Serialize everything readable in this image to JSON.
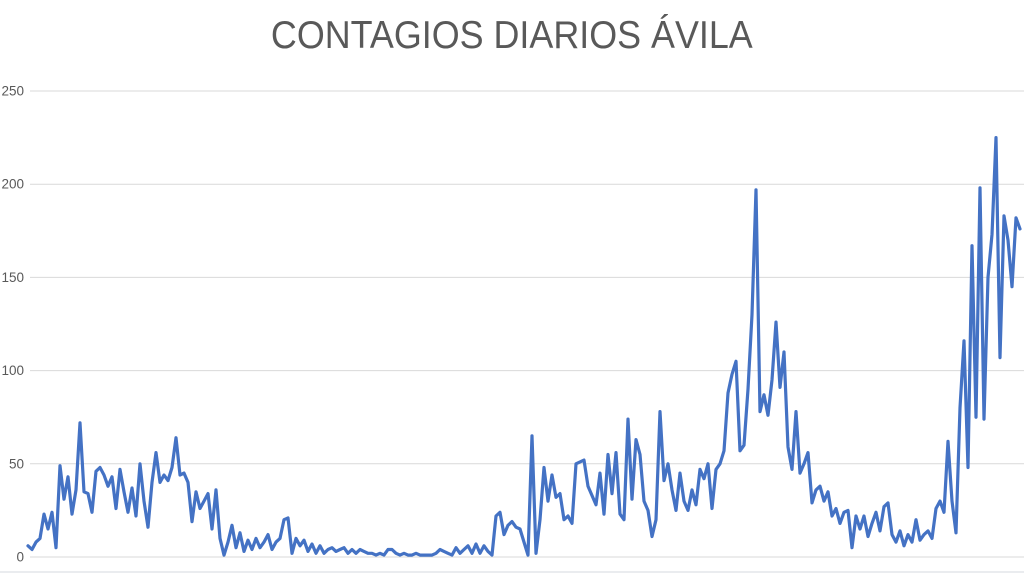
{
  "title": "CONTAGIOS DIARIOS ÁVILA",
  "chart_data": {
    "type": "line",
    "title": "CONTAGIOS DIARIOS ÁVILA",
    "series_name": "contagios-diarios",
    "xlabel": "",
    "ylabel": "",
    "ylim": [
      0,
      250
    ],
    "y_ticks": [
      0,
      50,
      100,
      150,
      200,
      250
    ],
    "x_tick_labels_visible": false,
    "grid": true,
    "legend": "none",
    "line_color": "#4472C4",
    "gridline_color": "#D9D9D9",
    "title_color": "#595959",
    "axis_label_color": "#595959",
    "background_color": "#FFFFFF",
    "values": [
      6,
      4,
      8,
      10,
      23,
      15,
      24,
      5,
      49,
      31,
      43,
      23,
      36,
      72,
      35,
      34,
      24,
      46,
      48,
      44,
      38,
      43,
      26,
      47,
      35,
      24,
      37,
      22,
      50,
      30,
      16,
      40,
      56,
      40,
      44,
      41,
      48,
      64,
      44,
      45,
      40,
      19,
      35,
      26,
      30,
      34,
      15,
      36,
      10,
      1,
      8,
      17,
      5,
      13,
      3,
      9,
      4,
      10,
      5,
      8,
      12,
      4,
      8,
      10,
      20,
      21,
      2,
      10,
      6,
      9,
      3,
      7,
      2,
      6,
      2,
      4,
      5,
      3,
      4,
      5,
      2,
      4,
      2,
      4,
      3,
      2,
      2,
      1,
      2,
      1,
      4,
      4,
      2,
      1,
      2,
      1,
      1,
      2,
      1,
      1,
      1,
      1,
      2,
      4,
      3,
      2,
      1,
      5,
      2,
      4,
      6,
      2,
      7,
      2,
      6,
      3,
      1,
      22,
      24,
      12,
      17,
      19,
      16,
      15,
      8,
      1,
      65,
      2,
      20,
      48,
      30,
      44,
      32,
      34,
      20,
      22,
      18,
      50,
      51,
      52,
      38,
      33,
      28,
      45,
      23,
      55,
      34,
      56,
      23,
      20,
      74,
      31,
      63,
      55,
      30,
      25,
      11,
      20,
      78,
      41,
      50,
      36,
      25,
      45,
      30,
      25,
      36,
      28,
      47,
      42,
      50,
      26,
      47,
      50,
      57,
      88,
      98,
      105,
      57,
      60,
      90,
      130,
      197,
      78,
      87,
      76,
      95,
      126,
      91,
      110,
      59,
      47,
      78,
      45,
      50,
      56,
      29,
      36,
      38,
      30,
      35,
      22,
      26,
      18,
      24,
      25,
      5,
      22,
      15,
      22,
      11,
      18,
      24,
      14,
      27,
      29,
      12,
      8,
      14,
      6,
      12,
      8,
      20,
      9,
      12,
      14,
      10,
      26,
      30,
      24,
      62,
      30,
      13,
      80,
      116,
      48,
      167,
      75,
      198,
      74,
      150,
      173,
      225,
      107,
      183,
      170,
      145,
      182,
      176
    ]
  }
}
